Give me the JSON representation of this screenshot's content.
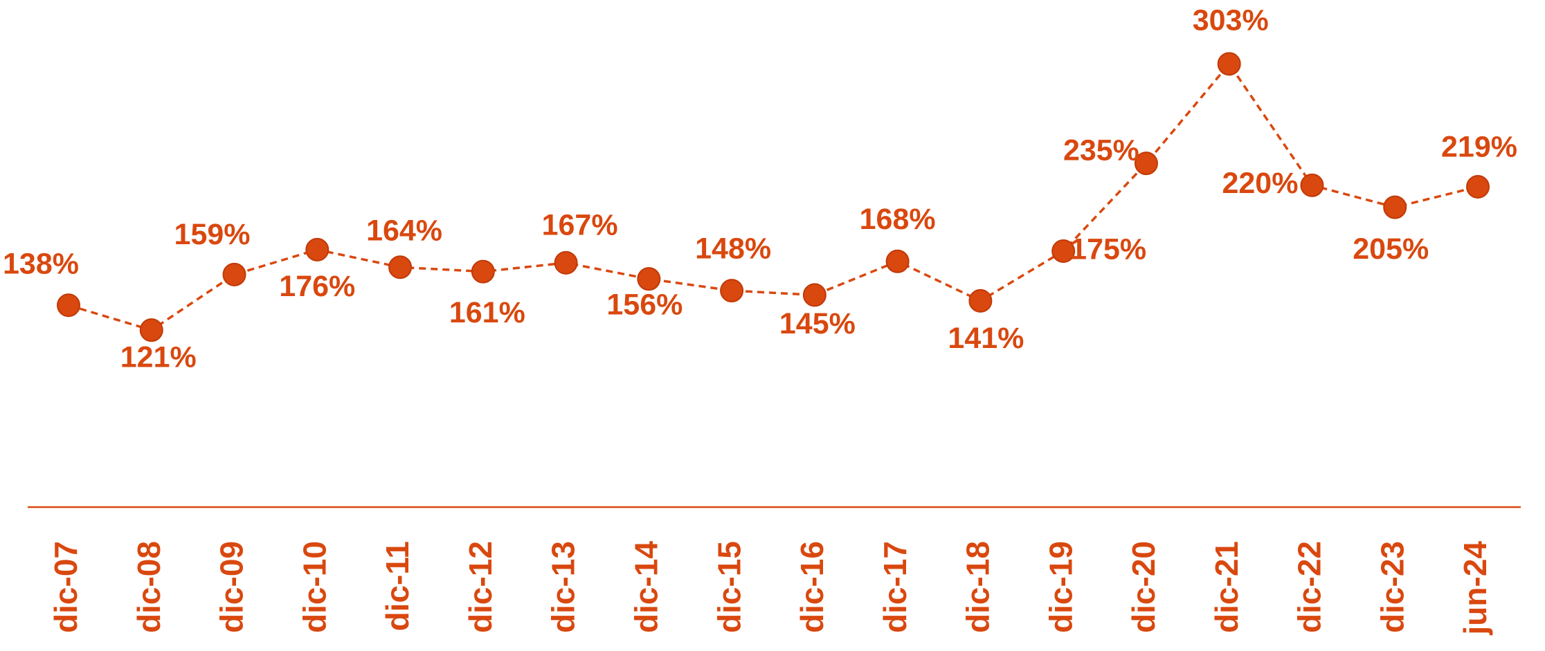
{
  "chart_data": {
    "type": "line",
    "categories": [
      "dic-07",
      "dic-08",
      "dic-09",
      "dic-10",
      "dic-11",
      "dic-12",
      "dic-13",
      "dic-14",
      "dic-15",
      "dic-16",
      "dic-17",
      "dic-18",
      "dic-19",
      "dic-20",
      "dic-21",
      "dic-22",
      "dic-23",
      "jun-24"
    ],
    "series": [
      {
        "color": "#d9480f",
        "values": [
          138,
          121,
          159,
          176,
          164,
          161,
          167,
          156,
          148,
          145,
          168,
          141,
          175,
          235,
          303,
          220,
          205,
          219
        ],
        "value_labels": [
          "138%",
          "121%",
          "159%",
          "176%",
          "164%",
          "161%",
          "167%",
          "156%",
          "148%",
          "145%",
          "168%",
          "141%",
          "175%",
          "235%",
          "303%",
          "220%",
          "205%",
          "219%"
        ]
      }
    ],
    "ylim": [
      0,
      350
    ],
    "line_style": "dashed"
  }
}
